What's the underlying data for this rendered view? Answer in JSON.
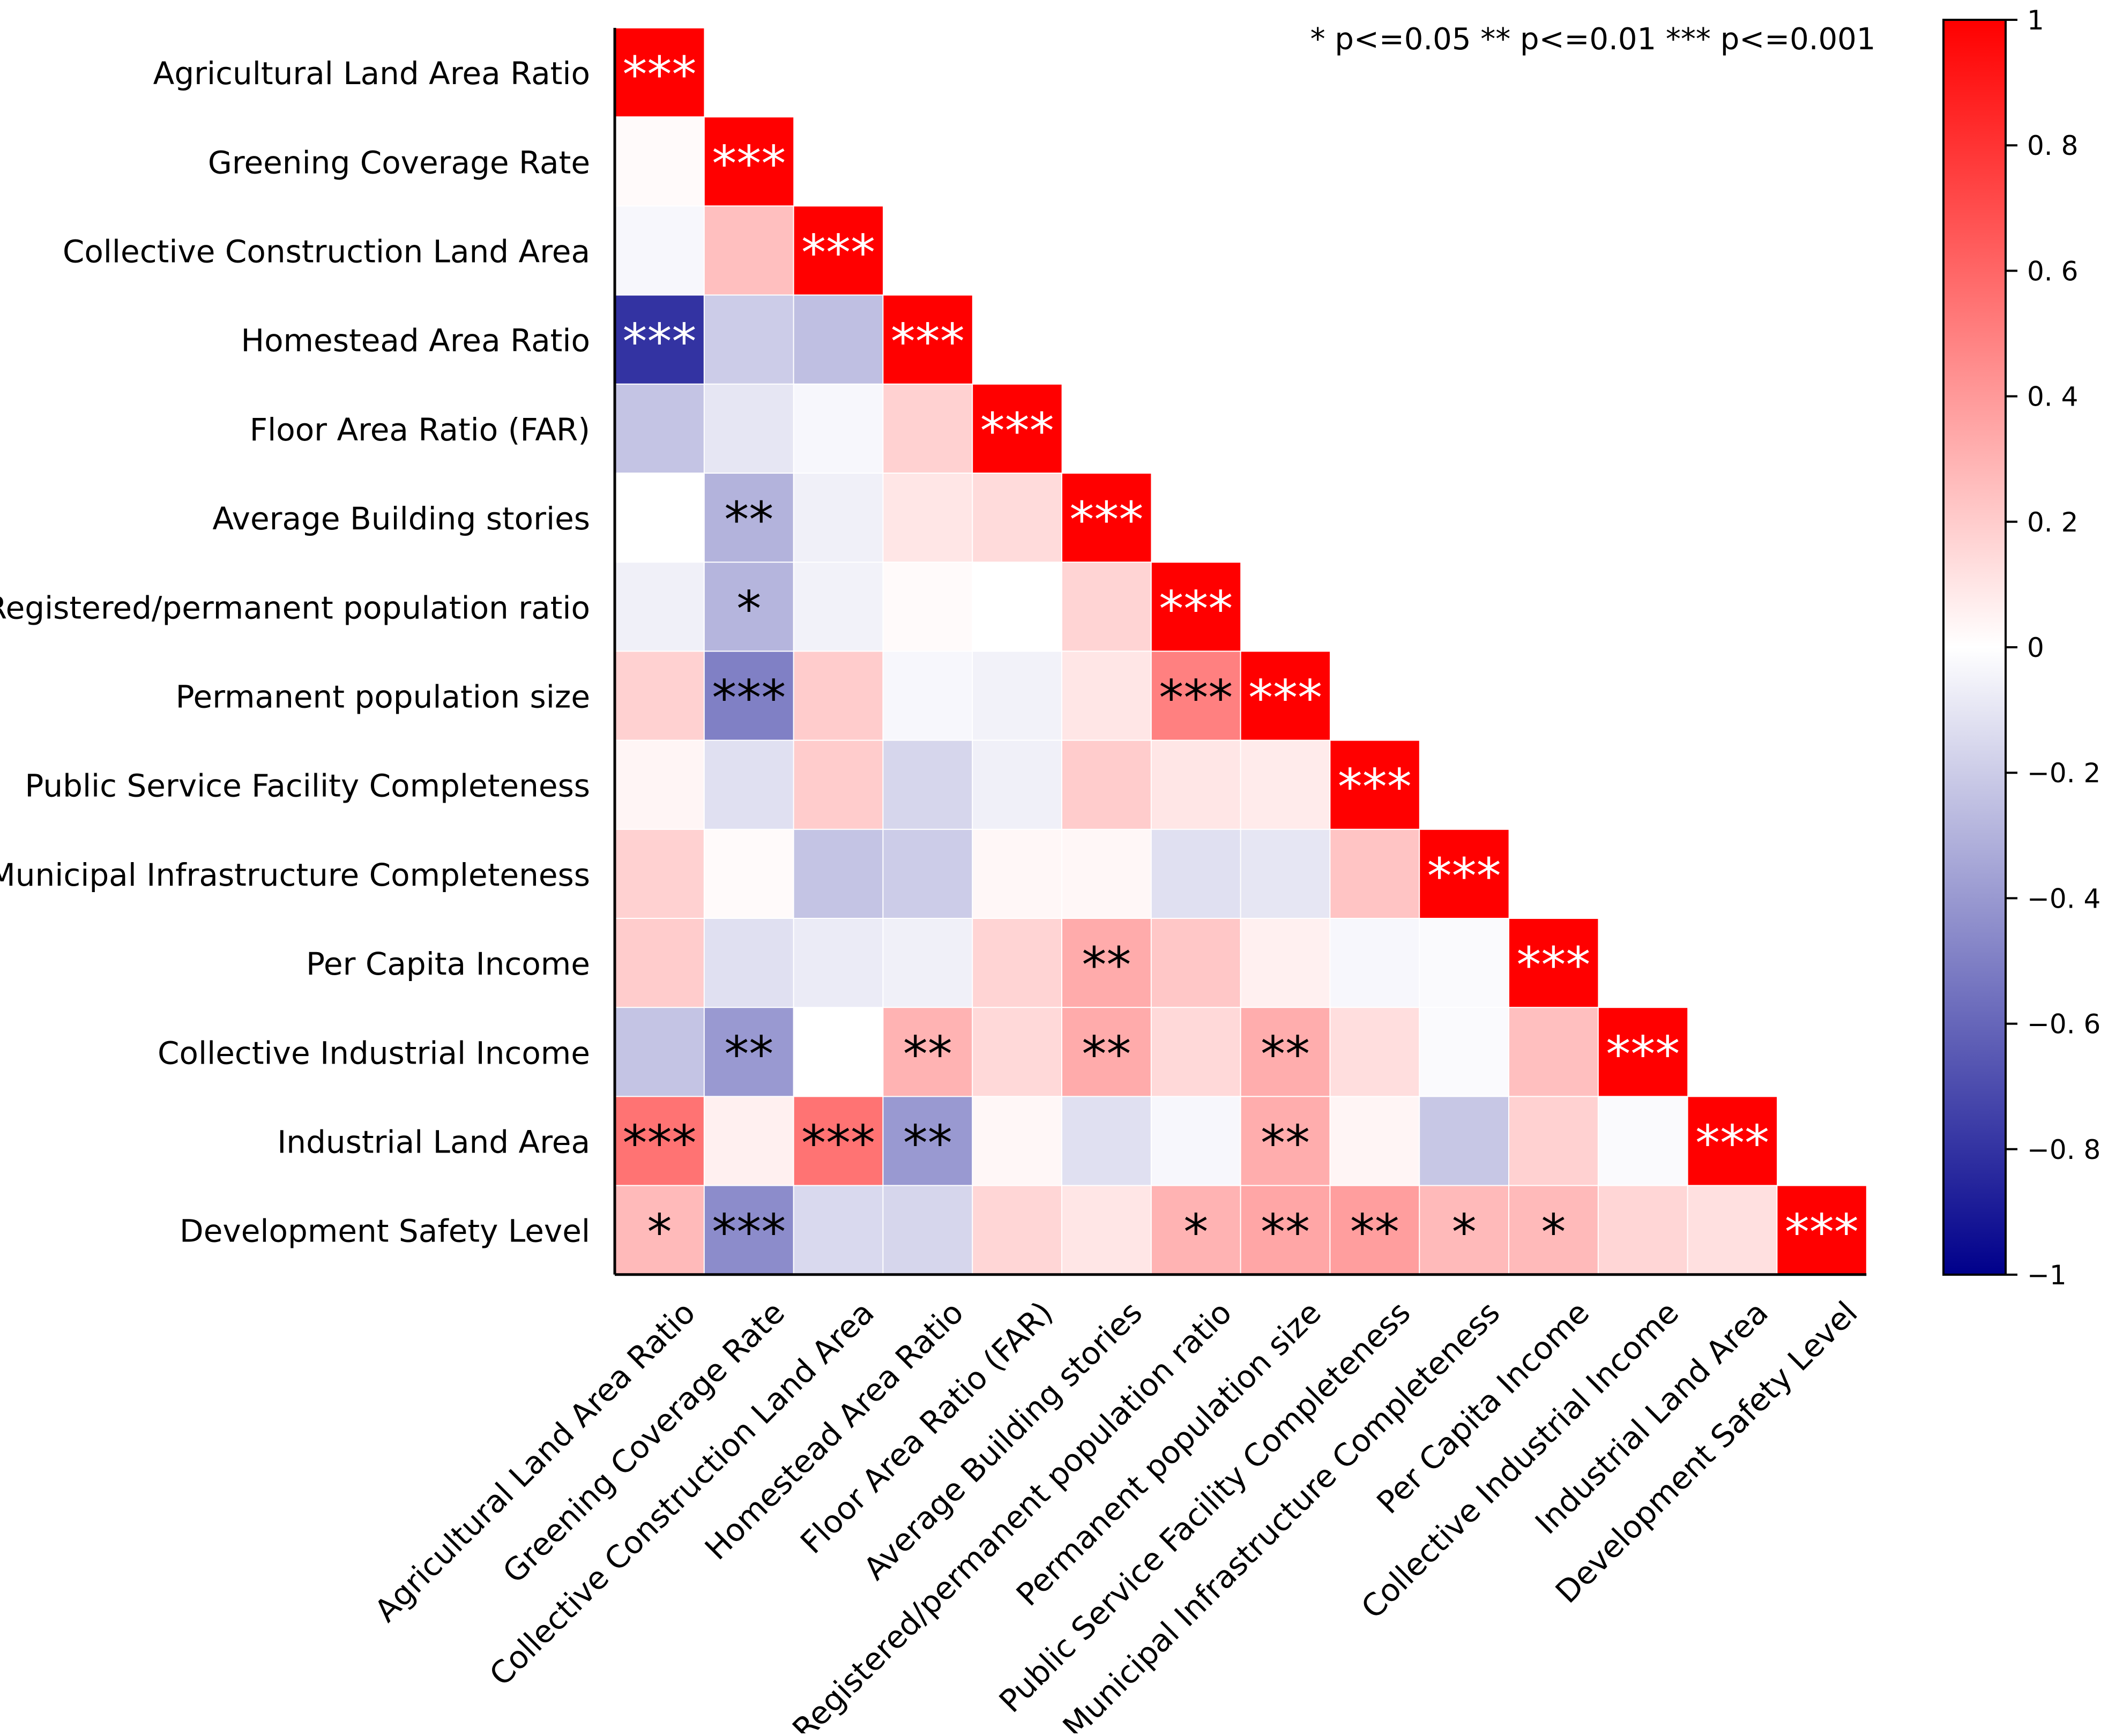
{
  "chart_data": {
    "type": "heatmap",
    "subtype": "lower-triangular correlation matrix",
    "title": "",
    "variables": [
      "Agricultural Land Area Ratio",
      "Greening Coverage Rate",
      "Collective Construction Land Area",
      "Homestead Area Ratio",
      "Floor Area Ratio (FAR)",
      "Average Building stories",
      "Registered/permanent population ratio",
      "Permanent population size",
      "Public Service Facility Completeness",
      "Municipal Infrastructure Completeness",
      "Per Capita Income",
      "Collective Industrial Income",
      "Industrial Land Area",
      "Development Safety Level"
    ],
    "correlations": [
      [
        1.0
      ],
      [
        0.02,
        1.0
      ],
      [
        -0.03,
        0.25,
        1.0
      ],
      [
        -0.8,
        -0.2,
        -0.25,
        1.0
      ],
      [
        -0.23,
        -0.1,
        -0.03,
        0.18,
        1.0
      ],
      [
        0.0,
        -0.3,
        -0.06,
        0.1,
        0.14,
        1.0
      ],
      [
        -0.06,
        -0.29,
        -0.05,
        0.02,
        0.0,
        0.17,
        1.0
      ],
      [
        0.18,
        -0.5,
        0.2,
        -0.03,
        -0.05,
        0.1,
        0.5,
        1.0
      ],
      [
        0.04,
        -0.12,
        0.2,
        -0.16,
        -0.06,
        0.2,
        0.1,
        0.08,
        1.0
      ],
      [
        0.18,
        0.02,
        -0.23,
        -0.2,
        0.03,
        0.03,
        -0.12,
        -0.1,
        0.23,
        1.0
      ],
      [
        0.2,
        -0.12,
        -0.08,
        -0.06,
        0.17,
        0.33,
        0.22,
        0.06,
        -0.03,
        -0.02,
        1.0
      ],
      [
        -0.23,
        -0.4,
        0.0,
        0.3,
        0.15,
        0.33,
        0.15,
        0.32,
        0.13,
        -0.02,
        0.25,
        1.0
      ],
      [
        0.55,
        0.06,
        0.55,
        -0.4,
        0.03,
        -0.12,
        -0.03,
        0.32,
        0.04,
        -0.22,
        0.18,
        -0.02,
        1.0
      ],
      [
        0.27,
        -0.45,
        -0.15,
        -0.16,
        0.16,
        0.1,
        0.3,
        0.35,
        0.38,
        0.27,
        0.27,
        0.16,
        0.12,
        1.0
      ]
    ],
    "significance": [
      [
        "***"
      ],
      [
        "",
        "***"
      ],
      [
        "",
        "",
        "***"
      ],
      [
        "***",
        "",
        "",
        "***"
      ],
      [
        "",
        "",
        "",
        "",
        "***"
      ],
      [
        "",
        "**",
        "",
        "",
        "",
        "***"
      ],
      [
        "",
        "*",
        "",
        "",
        "",
        "",
        "***"
      ],
      [
        "",
        "***",
        "",
        "",
        "",
        "",
        "***",
        "***"
      ],
      [
        "",
        "",
        "",
        "",
        "",
        "",
        "",
        "",
        "***"
      ],
      [
        "",
        "",
        "",
        "",
        "",
        "",
        "",
        "",
        "",
        "***"
      ],
      [
        "",
        "",
        "",
        "",
        "",
        "**",
        "",
        "",
        "",
        "",
        "***"
      ],
      [
        "",
        "**",
        "",
        "**",
        "",
        "**",
        "",
        "**",
        "",
        "",
        "",
        "***"
      ],
      [
        "***",
        "",
        "***",
        "**",
        "",
        "",
        "",
        "**",
        "",
        "",
        "",
        "",
        "***"
      ],
      [
        "*",
        "***",
        "",
        "",
        "",
        "",
        "*",
        "**",
        "**",
        "*",
        "*",
        "",
        "",
        "***"
      ]
    ],
    "significance_legend": "* p<=0.05  ** p<=0.01  *** p<=0.001",
    "colorbar": {
      "range": [
        -1,
        1
      ],
      "ticks": [
        1,
        0.8,
        0.6,
        0.4,
        0.2,
        0,
        -0.2,
        -0.4,
        -0.6,
        -0.8,
        -1
      ],
      "tick_labels": [
        "1",
        "0. 8",
        "0. 6",
        "0. 4",
        "0. 2",
        "0",
        "−0. 2",
        "−0. 4",
        "−0. 6",
        "−0. 8",
        "−1"
      ],
      "colors": {
        "low": "#00008b",
        "mid": "#ffffff",
        "high": "#ff0000"
      }
    }
  }
}
